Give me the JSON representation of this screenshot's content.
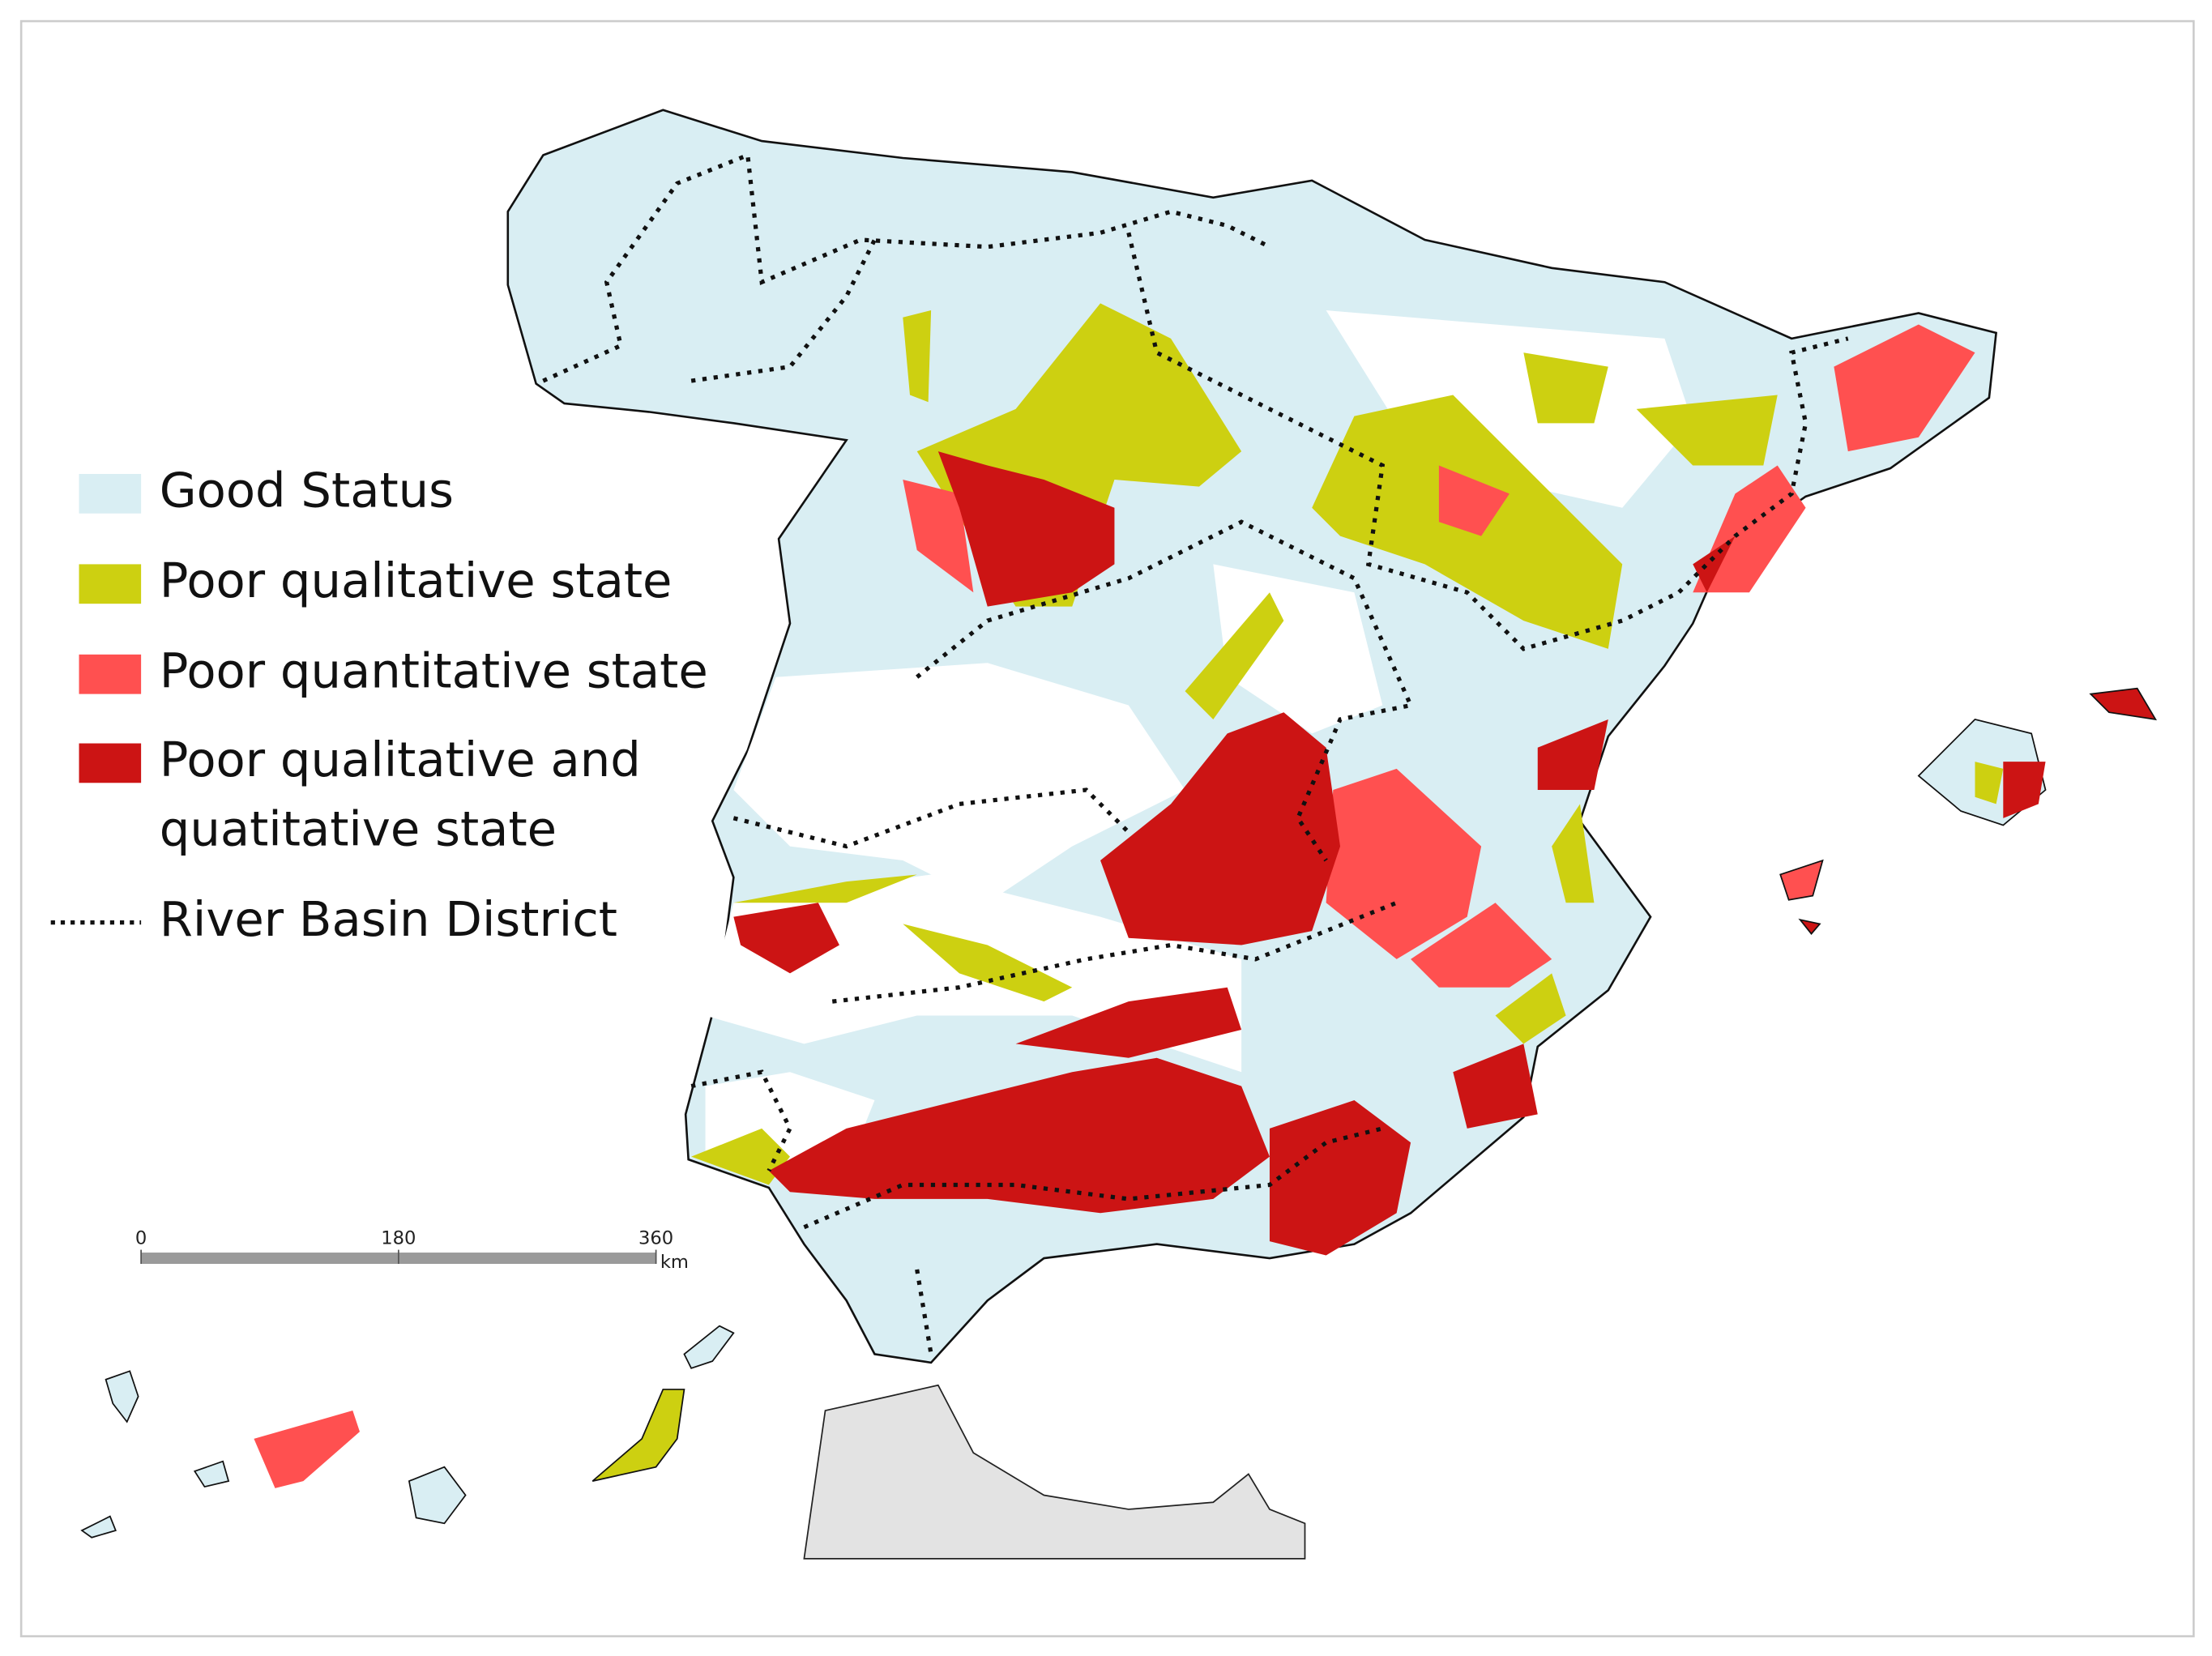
{
  "legend": {
    "items": [
      {
        "lines": [
          "Good Status"
        ],
        "color": "#d9eef3",
        "kind": "swatch"
      },
      {
        "lines": [
          "Poor qualitative state"
        ],
        "color": "#cdd011",
        "kind": "swatch"
      },
      {
        "lines": [
          "Poor quantitative state"
        ],
        "color": "#ff5050",
        "kind": "swatch"
      },
      {
        "lines": [
          "Poor qualitative and",
          "quatitative state"
        ],
        "color": "#cc1414",
        "kind": "swatch"
      },
      {
        "lines": [
          "River Basin District"
        ],
        "color": "#111111",
        "kind": "dotted"
      }
    ]
  },
  "scale_bar": {
    "ticks": [
      0,
      180,
      360
    ],
    "max": 360,
    "unit": "km"
  }
}
